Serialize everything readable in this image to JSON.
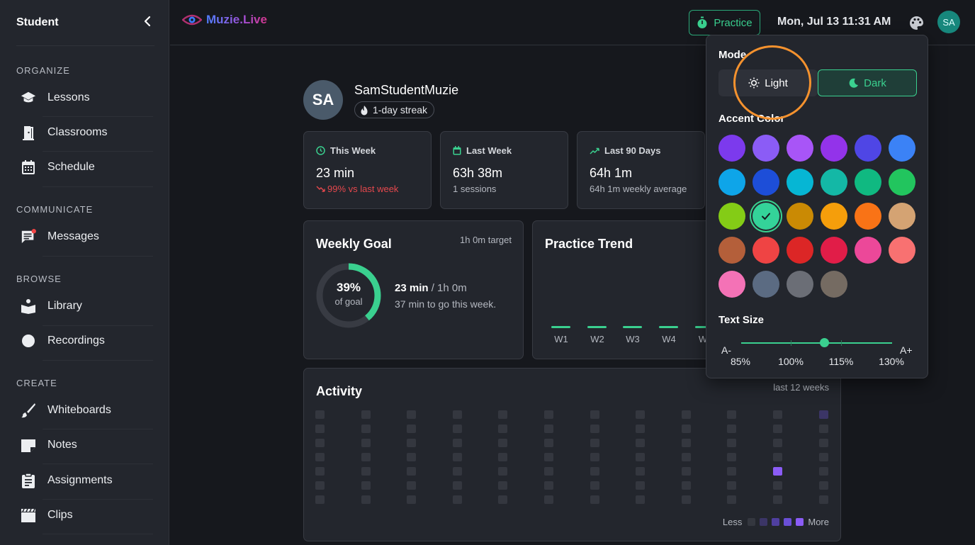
{
  "sidebar": {
    "title": "Student",
    "sections": [
      {
        "label": "ORGANIZE",
        "items": [
          {
            "label": "Lessons",
            "icon": "graduation-cap-icon"
          },
          {
            "label": "Classrooms",
            "icon": "door-icon"
          },
          {
            "label": "Schedule",
            "icon": "calendar-icon"
          }
        ]
      },
      {
        "label": "COMMUNICATE",
        "items": [
          {
            "label": "Messages",
            "icon": "message-icon"
          }
        ]
      },
      {
        "label": "BROWSE",
        "items": [
          {
            "label": "Library",
            "icon": "book-icon"
          },
          {
            "label": "Recordings",
            "icon": "record-icon"
          }
        ]
      },
      {
        "label": "CREATE",
        "items": [
          {
            "label": "Whiteboards",
            "icon": "brush-icon"
          },
          {
            "label": "Notes",
            "icon": "note-icon"
          },
          {
            "label": "Assignments",
            "icon": "clipboard-icon"
          },
          {
            "label": "Clips",
            "icon": "clapperboard-icon"
          }
        ]
      }
    ]
  },
  "topbar": {
    "logo": "Muzie.Live",
    "practice_label": "Practice",
    "datetime": "Mon, Jul 13 11:31 AM",
    "avatar": "SA"
  },
  "profile": {
    "initials": "SA",
    "name": "SamStudentMuzie",
    "streak": "1-day streak"
  },
  "stats": [
    {
      "title": "This Week",
      "value": "23 min",
      "sub": "99% vs last week",
      "trend": "down"
    },
    {
      "title": "Last Week",
      "value": "63h 38m",
      "sub": "1 sessions"
    },
    {
      "title": "Last 90 Days",
      "value": "64h 1m",
      "sub": "64h 1m weekly average"
    }
  ],
  "goal": {
    "title": "Weekly Goal",
    "target": "1h 0m target",
    "percent_label": "39%",
    "percent_value": 0.39,
    "ring_label": "of goal",
    "done": "23 min",
    "total": " / 1h 0m",
    "remaining": "37 min to go this week."
  },
  "trend": {
    "title": "Practice Trend",
    "weeks": [
      "W1",
      "W2",
      "W3",
      "W4",
      "W"
    ]
  },
  "activity": {
    "title": "Activity",
    "subtitle": "last 12 weeks",
    "legend_less": "Less",
    "legend_more": "More",
    "active_cells": [
      {
        "col": 10,
        "row": 4,
        "level": 4
      },
      {
        "col": 11,
        "row": 0,
        "level": 1
      }
    ]
  },
  "appearance": {
    "mode_heading": "Mode",
    "light_label": "Light",
    "dark_label": "Dark",
    "selected_mode": "Dark",
    "accent_heading": "Accent Color",
    "accent_colors": [
      "#7c3aed",
      "#8b5cf6",
      "#a855f7",
      "#9333ea",
      "#4f46e5",
      "#3b82f6",
      "#0ea5e9",
      "#1d4ed8",
      "#06b6d4",
      "#14b8a6",
      "#10b981",
      "#22c55e",
      "#84cc16",
      "#34d399",
      "#ca8a04",
      "#f59e0b",
      "#f97316",
      "#d4a373",
      "#b45f3a",
      "#ef4444",
      "#dc2626",
      "#e11d48",
      "#ec4899",
      "#f87171",
      "#f472b6",
      "#5b6b82",
      "#6b6e76",
      "#756b62"
    ],
    "selected_accent": "#34d399",
    "text_size_heading": "Text Size",
    "text_size_minus": "A-",
    "text_size_plus": "A+",
    "scales": [
      "85%",
      "100%",
      "115%",
      "130%"
    ],
    "selected_scale": "115%"
  }
}
